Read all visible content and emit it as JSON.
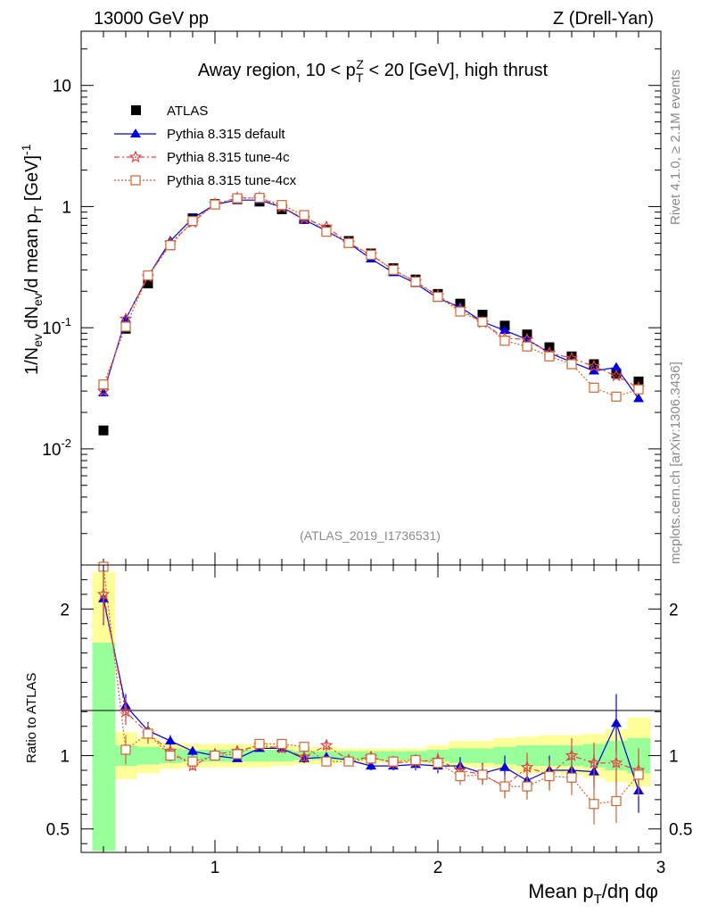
{
  "header": {
    "left": "13000 GeV pp",
    "right": "Z (Drell-Yan)"
  },
  "side": {
    "rivet": "Rivet 4.1.0, ≥ 2.1M events",
    "site": "mcplots.cern.ch [arXiv:1306.3436]"
  },
  "colors": {
    "atlas": "#000000",
    "default": "#0000dd",
    "tune4c": "#dd4444",
    "tune4cx": "#cc6633",
    "band_green": "#99ff99",
    "band_yellow": "#ffff99"
  },
  "chart_data": [
    {
      "type": "scatter",
      "title": "Away region, 10 < p_T^Z < 20 [GeV], high thrust",
      "analysis_label": "(ATLAS_2019_I1736531)",
      "ylabel": "1/N_ev dN_ev/d mean p_T [GeV]^-1",
      "yscale": "log",
      "ylim": [
        0.0011,
        28
      ],
      "xlim": [
        0.4,
        3.0
      ],
      "ytick_labels": [
        "10^-2",
        "10^-1",
        "1",
        "10"
      ],
      "legend": [
        "ATLAS",
        "Pythia 8.315 default",
        "Pythia 8.315 tune-4c",
        "Pythia 8.315 tune-4cx"
      ],
      "x": [
        0.5,
        0.6,
        0.7,
        0.8,
        0.9,
        1.0,
        1.1,
        1.2,
        1.3,
        1.4,
        1.5,
        1.6,
        1.7,
        1.8,
        1.9,
        2.0,
        2.1,
        2.2,
        2.3,
        2.4,
        2.5,
        2.6,
        2.7,
        2.8,
        2.9
      ],
      "series": [
        {
          "name": "ATLAS",
          "values": [
            0.0142,
            0.098,
            0.232,
            0.48,
            0.8,
            1.05,
            1.15,
            1.1,
            0.95,
            0.79,
            0.64,
            0.52,
            0.41,
            0.31,
            0.25,
            0.19,
            0.158,
            0.128,
            0.104,
            0.088,
            0.069,
            0.058,
            0.05,
            0.042,
            0.036
          ]
        },
        {
          "name": "Pythia 8.315 default",
          "values": [
            0.029,
            0.118,
            0.265,
            0.52,
            0.8,
            1.04,
            1.13,
            1.13,
            0.99,
            0.78,
            0.63,
            0.5,
            0.37,
            0.285,
            0.232,
            0.175,
            0.148,
            0.112,
            0.095,
            0.08,
            0.062,
            0.052,
            0.044,
            0.047,
            0.026
          ]
        },
        {
          "name": "Pythia 8.315 tune-4c",
          "values": [
            0.03,
            0.118,
            0.263,
            0.5,
            0.74,
            1.05,
            1.18,
            1.18,
            0.99,
            0.8,
            0.68,
            0.5,
            0.4,
            0.3,
            0.24,
            0.184,
            0.142,
            0.11,
            0.082,
            0.08,
            0.062,
            0.056,
            0.048,
            0.04,
            0.032
          ]
        },
        {
          "name": "Pythia 8.315 tune-4cx",
          "values": [
            0.034,
            0.102,
            0.27,
            0.48,
            0.76,
            1.04,
            1.17,
            1.18,
            1.03,
            0.85,
            0.62,
            0.5,
            0.4,
            0.3,
            0.24,
            0.18,
            0.136,
            0.112,
            0.078,
            0.07,
            0.058,
            0.05,
            0.032,
            0.027,
            0.031
          ]
        }
      ]
    },
    {
      "type": "scatter",
      "ylabel": "Ratio to ATLAS",
      "xlabel": "Mean p_T/dη dφ",
      "ylim": [
        0.34,
        2.3
      ],
      "xlim": [
        0.4,
        3.0
      ],
      "yticks": [
        0.5,
        1,
        2
      ],
      "xticks": [
        1,
        2,
        3
      ],
      "x": [
        0.5,
        0.6,
        0.7,
        0.8,
        0.9,
        1.0,
        1.1,
        1.2,
        1.3,
        1.4,
        1.5,
        1.6,
        1.7,
        1.8,
        1.9,
        2.0,
        2.1,
        2.2,
        2.3,
        2.4,
        2.5,
        2.6,
        2.7,
        2.8,
        2.9
      ],
      "band_green": [
        [
          0.35,
          1.77
        ],
        [
          0.93,
          1.07
        ],
        [
          0.94,
          1.06
        ],
        [
          0.95,
          1.05
        ],
        [
          0.96,
          1.04
        ],
        [
          0.96,
          1.04
        ],
        [
          0.96,
          1.04
        ],
        [
          0.96,
          1.04
        ],
        [
          0.96,
          1.04
        ],
        [
          0.97,
          1.03
        ],
        [
          0.97,
          1.03
        ],
        [
          0.97,
          1.03
        ],
        [
          0.97,
          1.03
        ],
        [
          0.97,
          1.03
        ],
        [
          0.97,
          1.03
        ],
        [
          0.96,
          1.04
        ],
        [
          0.95,
          1.05
        ],
        [
          0.95,
          1.05
        ],
        [
          0.94,
          1.06
        ],
        [
          0.93,
          1.07
        ],
        [
          0.93,
          1.07
        ],
        [
          0.93,
          1.07
        ],
        [
          0.92,
          1.08
        ],
        [
          0.9,
          1.1
        ],
        [
          0.88,
          1.12
        ]
      ],
      "band_yellow": [
        [
          0.35,
          2.25
        ],
        [
          0.84,
          1.16
        ],
        [
          0.88,
          1.12
        ],
        [
          0.91,
          1.09
        ],
        [
          0.92,
          1.08
        ],
        [
          0.92,
          1.08
        ],
        [
          0.92,
          1.08
        ],
        [
          0.92,
          1.08
        ],
        [
          0.93,
          1.07
        ],
        [
          0.94,
          1.06
        ],
        [
          0.94,
          1.06
        ],
        [
          0.95,
          1.05
        ],
        [
          0.95,
          1.05
        ],
        [
          0.95,
          1.05
        ],
        [
          0.95,
          1.05
        ],
        [
          0.93,
          1.07
        ],
        [
          0.92,
          1.1
        ],
        [
          0.92,
          1.1
        ],
        [
          0.9,
          1.12
        ],
        [
          0.88,
          1.13
        ],
        [
          0.88,
          1.14
        ],
        [
          0.87,
          1.14
        ],
        [
          0.85,
          1.15
        ],
        [
          0.82,
          1.18
        ],
        [
          0.79,
          1.26
        ]
      ],
      "series": [
        {
          "name": "Pythia 8.315 default",
          "values": [
            2.07,
            1.34,
            1.17,
            1.1,
            1.03,
            1.0,
            0.98,
            1.05,
            1.05,
            0.98,
            0.99,
            0.97,
            0.93,
            0.93,
            0.94,
            0.93,
            0.93,
            0.88,
            0.92,
            0.83,
            0.9,
            0.9,
            0.89,
            1.22,
            0.76
          ],
          "errors": [
            0.18,
            0.08,
            0.06,
            0.04,
            0.03,
            0.02,
            0.02,
            0.02,
            0.03,
            0.03,
            0.03,
            0.03,
            0.03,
            0.03,
            0.04,
            0.05,
            0.06,
            0.07,
            0.08,
            0.09,
            0.1,
            0.1,
            0.12,
            0.2,
            0.15
          ]
        },
        {
          "name": "Pythia 8.315 tune-4c",
          "values": [
            2.1,
            1.3,
            1.15,
            1.03,
            0.93,
            1.01,
            1.03,
            1.07,
            1.05,
            0.99,
            1.07,
            0.97,
            0.99,
            0.95,
            0.96,
            0.97,
            0.9,
            0.87,
            0.79,
            0.92,
            0.87,
            1.0,
            0.95,
            0.95,
            0.9
          ],
          "errors": [
            0.2,
            0.09,
            0.06,
            0.04,
            0.03,
            0.02,
            0.02,
            0.02,
            0.03,
            0.03,
            0.04,
            0.03,
            0.04,
            0.04,
            0.05,
            0.05,
            0.06,
            0.07,
            0.08,
            0.1,
            0.1,
            0.12,
            0.14,
            0.15,
            0.15
          ]
        },
        {
          "name": "Pythia 8.315 tune-4cx",
          "values": [
            2.3,
            1.04,
            1.15,
            1.0,
            0.96,
            1.0,
            1.01,
            1.08,
            1.08,
            1.06,
            0.96,
            0.96,
            0.98,
            0.96,
            0.97,
            0.95,
            0.86,
            0.87,
            0.79,
            0.79,
            0.86,
            0.85,
            0.67,
            0.69,
            0.87
          ],
          "errors": [
            0.25,
            0.1,
            0.07,
            0.04,
            0.03,
            0.02,
            0.02,
            0.02,
            0.03,
            0.03,
            0.03,
            0.03,
            0.04,
            0.04,
            0.04,
            0.05,
            0.06,
            0.07,
            0.08,
            0.09,
            0.1,
            0.12,
            0.14,
            0.15,
            0.15
          ]
        }
      ]
    }
  ]
}
